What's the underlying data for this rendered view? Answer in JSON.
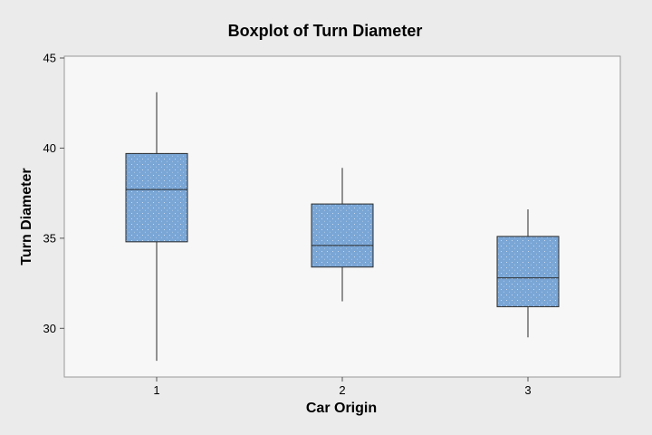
{
  "chart_data": {
    "type": "boxplot",
    "title": "Boxplot of Turn Diameter",
    "xlabel": "Car Origin",
    "ylabel": "Turn Diameter",
    "ylim": [
      27.3,
      45.1
    ],
    "yticks": [
      30,
      35,
      40,
      45
    ],
    "categories": [
      "1",
      "2",
      "3"
    ],
    "boxes": [
      {
        "category": "1",
        "whisker_low": 28.2,
        "q1": 34.8,
        "median": 37.7,
        "q3": 39.7,
        "whisker_high": 43.1
      },
      {
        "category": "2",
        "whisker_low": 31.5,
        "q1": 33.4,
        "median": 34.6,
        "q3": 36.9,
        "whisker_high": 38.9
      },
      {
        "category": "3",
        "whisker_low": 29.5,
        "q1": 31.2,
        "median": 32.8,
        "q3": 35.1,
        "whisker_high": 36.6
      }
    ],
    "grid": false,
    "legend": "none",
    "colors": {
      "background": "#ebebeb",
      "plot_area": "#f7f7f7",
      "box_fill": "#7aa6d6",
      "box_stroke": "#2a2a2a"
    }
  }
}
